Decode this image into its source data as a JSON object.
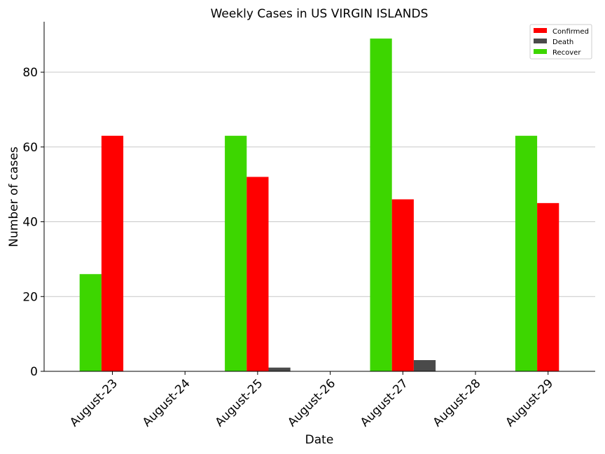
{
  "chart_data": {
    "type": "bar",
    "title": "Weekly Cases in US VIRGIN ISLANDS",
    "xlabel": "Date",
    "ylabel": "Number of cases",
    "categories": [
      "August-23",
      "August-24",
      "August-25",
      "August-26",
      "August-27",
      "August-28",
      "August-29"
    ],
    "series": [
      {
        "name": "Recover",
        "color": "#3dd600",
        "values": [
          26,
          0,
          63,
          0,
          89,
          0,
          63
        ]
      },
      {
        "name": "Confirmed",
        "color": "#ff0000",
        "values": [
          63,
          0,
          52,
          0,
          46,
          0,
          45
        ]
      },
      {
        "name": "Death",
        "color": "#4a4a4a",
        "values": [
          0,
          0,
          1,
          0,
          3,
          0,
          0
        ]
      }
    ],
    "legend_order": [
      "Confirmed",
      "Death",
      "Recover"
    ],
    "legend_position": "top-right",
    "yticks": [
      0,
      20,
      40,
      60,
      80
    ],
    "ylim": [
      0,
      93.5
    ],
    "grid": "y"
  }
}
